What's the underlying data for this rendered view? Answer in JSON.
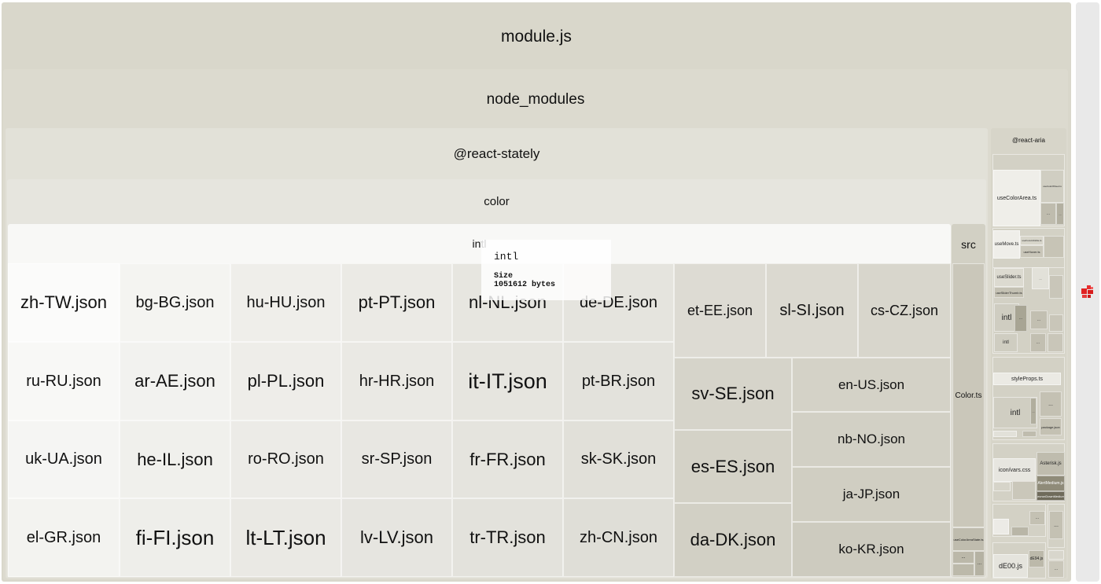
{
  "treemap": {
    "root": "module.js",
    "node_modules": "node_modules",
    "react_stately": "@react-stately",
    "color": "color",
    "intl": "intl",
    "src": "src",
    "color_ts": "Color.ts",
    "use_color_area_state": "useColorAreaState.ts",
    "react_aria": "@react-aria",
    "locale_files": [
      "zh-TW.json",
      "bg-BG.json",
      "hu-HU.json",
      "pt-PT.json",
      "nl-NL.json",
      "de-DE.json",
      "ru-RU.json",
      "ar-AE.json",
      "pl-PL.json",
      "hr-HR.json",
      "it-IT.json",
      "pt-BR.json",
      "uk-UA.json",
      "he-IL.json",
      "ro-RO.json",
      "sr-SP.json",
      "fr-FR.json",
      "sk-SK.json",
      "el-GR.json",
      "fi-FI.json",
      "lt-LT.json",
      "lv-LV.json",
      "tr-TR.json",
      "zh-CN.json",
      "et-EE.json",
      "sl-SI.json",
      "cs-CZ.json",
      "sv-SE.json",
      "es-ES.json",
      "da-DK.json",
      "en-US.json",
      "nb-NO.json",
      "ja-JP.json",
      "ko-KR.json"
    ],
    "react_aria_items": [
      "useColorArea.ts",
      "useColorWheel.ts",
      "useMove.ts",
      "useFocusVisible.ts",
      "useHover.ts",
      "useSlider.ts",
      "useSliderThumb.ts",
      "intl",
      "intl",
      "styleProps.ts",
      "intl",
      "package.json",
      "icon/vars.css",
      "Asterisk.js",
      "AlertMedium.js",
      "ChevronDownMedium.js",
      "dE00.js",
      "dE94.js"
    ],
    "ellipsis": "..."
  },
  "tooltip": {
    "name": "intl",
    "size_label": "Size",
    "size_value": "1051612 bytes"
  },
  "sidebar": {
    "logo_icon": "treemap-logo-icon"
  }
}
